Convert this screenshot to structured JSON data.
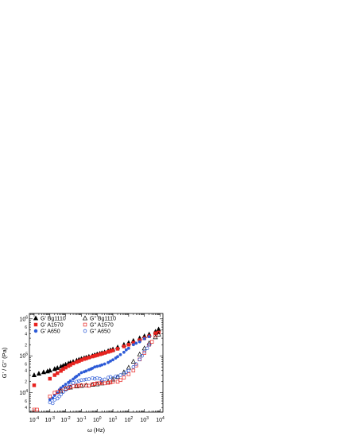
{
  "chart_data": {
    "type": "scatter",
    "xlabel": "ω (Hz)",
    "ylabel": "G' / G'' (Pa)",
    "x_scale": "log",
    "y_scale": "log",
    "xlim": [
      5e-05,
      15000
    ],
    "ylim": [
      3000,
      1400000
    ],
    "x_ticks": [
      0.0001,
      0.001,
      0.01,
      0.1,
      1,
      10,
      100,
      1000,
      10000
    ],
    "x_tick_labels": [
      {
        "base": "10",
        "exp": "-4"
      },
      {
        "base": "10",
        "exp": "-3"
      },
      {
        "base": "10",
        "exp": "-2"
      },
      {
        "base": "10",
        "exp": "-1"
      },
      {
        "base": "10",
        "exp": "0"
      },
      {
        "base": "10",
        "exp": "1"
      },
      {
        "base": "10",
        "exp": "2"
      },
      {
        "base": "10",
        "exp": "3"
      },
      {
        "base": "10",
        "exp": "4"
      }
    ],
    "y_ticks": [
      10000,
      100000,
      1000000
    ],
    "y_tick_labels": [
      {
        "base": "10",
        "exp": "4"
      },
      {
        "base": "10",
        "exp": "5"
      },
      {
        "base": "10",
        "exp": "6"
      }
    ],
    "y_minor_labels": [
      {
        "value": 4000,
        "label": "4"
      },
      {
        "value": 6000,
        "label": "6"
      },
      {
        "value": 20000,
        "label": "2"
      },
      {
        "value": 40000,
        "label": "4"
      },
      {
        "value": 60000,
        "label": "6"
      },
      {
        "value": 200000,
        "label": "2"
      },
      {
        "value": 400000,
        "label": "4"
      },
      {
        "value": 600000,
        "label": "6"
      }
    ],
    "grid": false,
    "legend_position": "top-left",
    "series": [
      {
        "name": "G' Bg1110",
        "marker": "triangle",
        "filled": true,
        "color": "#000000",
        "x": [
          0.0001,
          0.0002,
          0.0004,
          0.0007,
          0.001,
          0.002,
          0.003,
          0.005,
          0.007,
          0.01,
          0.015,
          0.02,
          0.03,
          0.05,
          0.07,
          0.1,
          0.15,
          0.2,
          0.3,
          0.5,
          0.7,
          1,
          1.5,
          2,
          3,
          5,
          7,
          10,
          20,
          50,
          100,
          200,
          500,
          1000,
          2000,
          5000,
          8000
        ],
        "y": [
          30000,
          33000,
          36000,
          38000,
          40000,
          44000,
          47000,
          51000,
          54000,
          58000,
          62000,
          65000,
          69000,
          75000,
          79000,
          83000,
          87000,
          90000,
          95000,
          100000,
          105000,
          110000,
          115000,
          119000,
          125000,
          135000,
          142000,
          150000,
          170000,
          200000,
          225000,
          255000,
          300000,
          340000,
          380000,
          450000,
          520000
        ]
      },
      {
        "name": "G' A1570",
        "marker": "square",
        "filled": true,
        "color": "#e8231f",
        "x": [
          0.0001,
          0.001,
          0.002,
          0.003,
          0.005,
          0.007,
          0.01,
          0.015,
          0.02,
          0.03,
          0.05,
          0.07,
          0.1,
          0.15,
          0.2,
          0.3,
          0.5,
          0.7,
          1,
          1.5,
          2,
          3,
          5,
          7,
          10,
          20,
          50,
          100,
          200,
          500,
          1000,
          2000,
          5000,
          8000
        ],
        "y": [
          16000,
          24000,
          30000,
          34000,
          39000,
          44000,
          48000,
          53000,
          57000,
          62000,
          68000,
          72000,
          77000,
          82000,
          85000,
          90000,
          96000,
          100000,
          104000,
          110000,
          114000,
          120000,
          128000,
          134000,
          140000,
          155000,
          180000,
          200000,
          225000,
          265000,
          300000,
          340000,
          410000,
          430000
        ]
      },
      {
        "name": "G' A650",
        "marker": "circle",
        "filled": true,
        "color": "#2d5bd7",
        "x": [
          0.001,
          0.0015,
          0.002,
          0.003,
          0.004,
          0.005,
          0.007,
          0.01,
          0.015,
          0.02,
          0.03,
          0.04,
          0.05,
          0.07,
          0.1,
          0.15,
          0.2,
          0.3,
          0.4,
          0.5,
          0.7,
          1,
          1.5,
          2,
          3,
          5,
          7,
          10,
          15,
          20,
          30,
          50,
          70,
          100,
          200,
          300,
          500,
          1000,
          2000
        ],
        "y": [
          6500,
          7200,
          8500,
          10000,
          12000,
          13500,
          15000,
          17000,
          19000,
          21000,
          23500,
          26000,
          28000,
          31000,
          35000,
          37000,
          39000,
          42000,
          44000,
          46000,
          50000,
          52000,
          54000,
          57000,
          60000,
          66000,
          72000,
          78000,
          87000,
          95000,
          108000,
          125000,
          145000,
          160000,
          200000,
          220000,
          240000,
          290000,
          330000
        ]
      },
      {
        "name": "G\" Bg1110",
        "marker": "triangle",
        "filled": false,
        "color": "#000000",
        "x": [
          0.005,
          0.01,
          0.02,
          0.05,
          0.1,
          0.2,
          0.5,
          1,
          2,
          5,
          10,
          20,
          50,
          100,
          200,
          500,
          1000,
          2000,
          5000,
          8000
        ],
        "y": [
          11000,
          13000,
          14000,
          15000,
          15500,
          16000,
          16500,
          17000,
          18000,
          20000,
          23000,
          27000,
          36000,
          48000,
          70000,
          110000,
          160000,
          220000,
          320000,
          380000
        ]
      },
      {
        "name": "G\" A1570",
        "marker": "square",
        "filled": false,
        "color": "#e8231f",
        "x": [
          0.0001,
          0.00015,
          0.001,
          0.002,
          0.003,
          0.005,
          0.01,
          0.015,
          0.02,
          0.03,
          0.05,
          0.07,
          0.1,
          0.2,
          0.3,
          0.5,
          0.7,
          1,
          1.5,
          2,
          3,
          5,
          7,
          10,
          20,
          30,
          50,
          100,
          200,
          300,
          500,
          1000,
          2000,
          3000,
          5000
        ],
        "y": [
          3500,
          3500,
          8000,
          10000,
          10500,
          11500,
          13000,
          13500,
          14500,
          15000,
          15500,
          15500,
          16000,
          16000,
          15500,
          17000,
          17500,
          18000,
          18000,
          19000,
          18000,
          18500,
          19000,
          20000,
          20000,
          22000,
          26000,
          32000,
          40000,
          55000,
          80000,
          120000,
          200000,
          240000,
          360000
        ]
      },
      {
        "name": "G\" A650",
        "marker": "circle",
        "filled": false,
        "color": "#2d5bd7",
        "x": [
          0.001,
          0.0015,
          0.002,
          0.003,
          0.004,
          0.005,
          0.007,
          0.01,
          0.015,
          0.02,
          0.03,
          0.05,
          0.07,
          0.1,
          0.15,
          0.2,
          0.3,
          0.5,
          0.7,
          1,
          1.5,
          2,
          3,
          5,
          7,
          10,
          15,
          20,
          30,
          50,
          70,
          100,
          200,
          300,
          500,
          700,
          1000,
          1500,
          2000
        ],
        "y": [
          5500,
          5200,
          6500,
          7000,
          8000,
          9000,
          10500,
          12000,
          14500,
          16500,
          18500,
          20000,
          21000,
          22000,
          22500,
          23000,
          23500,
          25000,
          24000,
          25000,
          24000,
          22000,
          23000,
          26000,
          27000,
          25000,
          28000,
          27000,
          30000,
          33000,
          36000,
          40000,
          50000,
          60000,
          80000,
          100000,
          130000,
          160000,
          200000
        ]
      }
    ]
  }
}
